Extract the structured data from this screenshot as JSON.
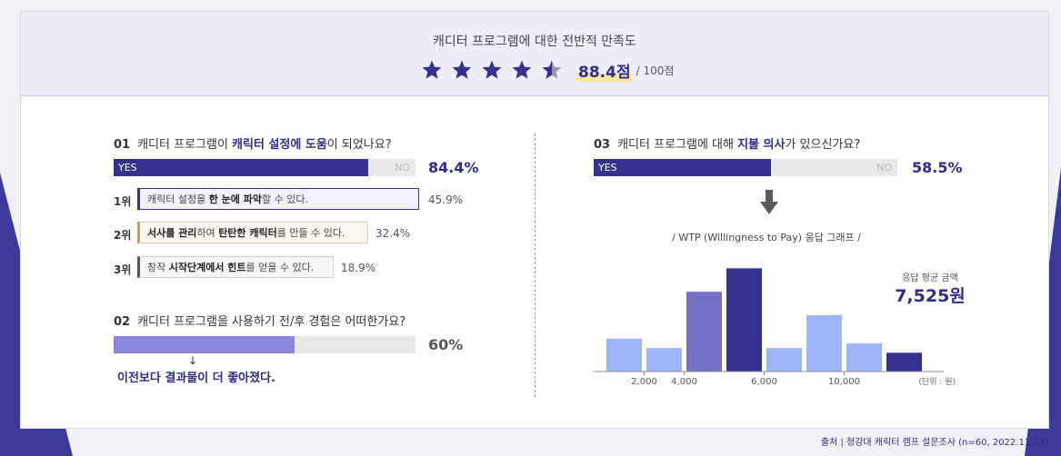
{
  "header": {
    "title": "캐디터 프로그램에 대한 전반적 만족도",
    "stars_filled": 4.5,
    "stars_total": 5,
    "score": "88.4점",
    "score_max": "/ 100점",
    "colors": {
      "star": "#35318f",
      "star_empty": "#9a9aa6",
      "highlight": "#fbe7a3"
    }
  },
  "q1": {
    "number": "01",
    "title_pre": "캐디터 프로그램이 ",
    "title_hl": "캐릭터 설정에 도움",
    "title_post": "이 되었나요?",
    "yes_label": "YES",
    "no_label": "NO",
    "yes_fraction": 0.844,
    "percent": "84.4%",
    "ranks": [
      {
        "rank": "1위",
        "pre": "캐릭터 설정을 ",
        "bold": "한 눈에 파악",
        "post": "할 수 있다.",
        "percent": "45.9%"
      },
      {
        "rank": "2위",
        "pre": "",
        "bold": "서사를 관리",
        "mid": "하여 ",
        "bold2": "탄탄한 캐릭터",
        "post": "를 만들 수 있다.",
        "percent": "32.4%"
      },
      {
        "rank": "3위",
        "pre": "창작 ",
        "bold": "시작단계에서 힌트",
        "post": "를 얻을 수 있다.",
        "percent": "18.9%"
      }
    ]
  },
  "q2": {
    "number": "02",
    "title": "캐디터 프로그램을 사용하기 전/후 경험은 어떠한가요?",
    "fraction": 0.6,
    "percent": "60%",
    "arrow": "↓",
    "note": "이전보다 결과물이 더 좋아졌다."
  },
  "q3": {
    "number": "03",
    "title_pre": "캐디터 프로그램에 대해 ",
    "title_hl": "지불 의사",
    "title_post": "가 있으신가요?",
    "yes_label": "YES",
    "no_label": "NO",
    "yes_fraction": 0.585,
    "percent": "58.5%"
  },
  "wtp": {
    "title": "/ WTP (Willingness to Pay) 응답 그래프 /",
    "avg_label": "응답 평균 금액",
    "avg_value": "7,525원",
    "unit": "(단위 : 원)"
  },
  "chart_data": {
    "type": "bar",
    "title": "/ WTP (Willingness to Pay) 응답 그래프 /",
    "x_ticks": [
      "2,000",
      "4,000",
      "6,000",
      "10,000"
    ],
    "values": [
      3.5,
      2.5,
      8.5,
      11,
      2.5,
      6,
      3,
      2
    ],
    "colors": [
      "#9db6f7",
      "#9db6f7",
      "#7470c4",
      "#35318f",
      "#9db6f7",
      "#9db6f7",
      "#9db6f7",
      "#35318f"
    ],
    "ylim": [
      0,
      12
    ],
    "grid": false,
    "unit": "(단위 : 원)"
  },
  "footer": "출처 | 청강대 캐릭터 캠프 설문조사 (n=60, 2022.11.13)"
}
